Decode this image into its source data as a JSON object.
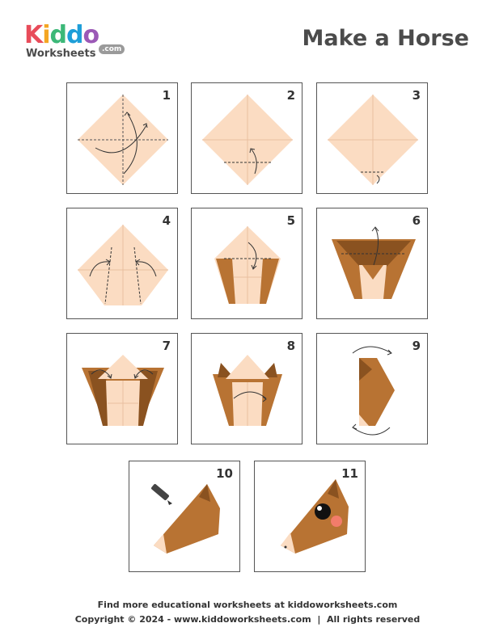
{
  "logo": {
    "letters": [
      {
        "char": "K",
        "color": "#e84c5a"
      },
      {
        "char": "i",
        "color": "#f4a623"
      },
      {
        "char": "d",
        "color": "#3cb878"
      },
      {
        "char": "d",
        "color": "#1e9ed8"
      },
      {
        "char": "o",
        "color": "#9b59b6"
      }
    ],
    "sub": "Worksheets",
    "dotcom": ".com"
  },
  "title": "Make a Horse",
  "colors": {
    "paper": "#fbdcc2",
    "paper_line": "#e8bfa0",
    "brown": "#b87333",
    "brown_dark": "#8a5220",
    "pink": "#f27c6a"
  },
  "steps": [
    {
      "number": "1",
      "icon": "square-diamond-fold-diagonals"
    },
    {
      "number": "2",
      "icon": "fold-bottom-tip-up"
    },
    {
      "number": "3",
      "icon": "folded-tip-tucked"
    },
    {
      "number": "4",
      "icon": "fold-sides-to-center"
    },
    {
      "number": "5",
      "icon": "narrowed-cone"
    },
    {
      "number": "6",
      "icon": "fold-top-down"
    },
    {
      "number": "7",
      "icon": "fold-ears-outward"
    },
    {
      "number": "8",
      "icon": "fold-in-half"
    },
    {
      "number": "9",
      "icon": "rotate-flip"
    },
    {
      "number": "10",
      "icon": "draw-face-pencil"
    },
    {
      "number": "11",
      "icon": "finished-horse-head"
    }
  ],
  "footer": {
    "line1": "Find more educational worksheets at kiddoworksheets.com",
    "line2": "Copyright © 2024 - www.kiddoworksheets.com  |  All rights reserved"
  }
}
